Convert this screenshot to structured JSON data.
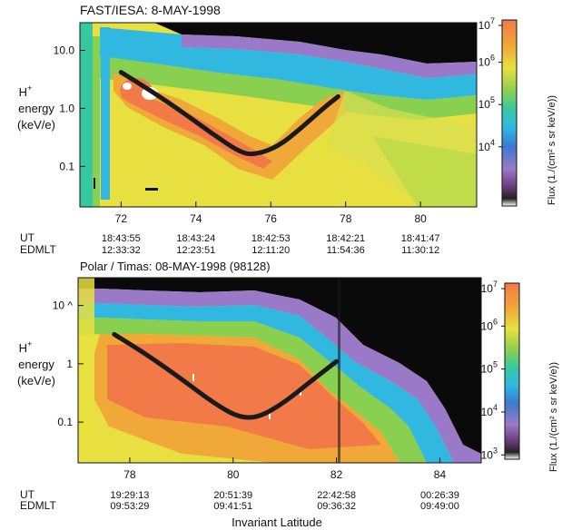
{
  "chart_data": [
    {
      "type": "heatmap",
      "title": "FAST/IESA:  8-MAY-1998",
      "ylabel_lines": [
        "H",
        "energy",
        "(keV/e)"
      ],
      "ylabel_superscript": "+",
      "y_scale": "log",
      "ylim": [
        0.02,
        30
      ],
      "yticks": [
        {
          "value": 10,
          "label": "10.0"
        },
        {
          "value": 1,
          "label": "1.0"
        },
        {
          "value": 0.1,
          "label": "0.1"
        }
      ],
      "xlim": [
        70.9,
        81.5
      ],
      "xticks": [
        72,
        74,
        76,
        78,
        80
      ],
      "ephemeris": {
        "UT": [
          "18:43:55",
          "18:43:24",
          "18:42:53",
          "18:42:21",
          "18:41:47"
        ],
        "EDMLT": [
          "12:33:32",
          "12:23:51",
          "12:11:20",
          "11:54:36",
          "11:30:12"
        ]
      },
      "ephemeris_labels": [
        "UT",
        "EDMLT"
      ],
      "colorbar": {
        "label": "Flux (1./(cm² s sr keV/e))",
        "ticks": [
          {
            "exp": "7",
            "value": 10000000
          },
          {
            "exp": "6",
            "value": 1000000
          },
          {
            "exp": "5",
            "value": 100000
          },
          {
            "exp": "4",
            "value": 10000
          }
        ],
        "base": "10"
      },
      "curve": {
        "x": [
          72.0,
          72.8,
          73.6,
          74.4,
          75.2,
          75.6,
          76.2,
          76.8,
          77.4,
          77.8
        ],
        "y": [
          4.2,
          2.0,
          0.9,
          0.38,
          0.17,
          0.16,
          0.22,
          0.45,
          1.0,
          1.6
        ]
      }
    },
    {
      "type": "heatmap",
      "title": "Polar / Timas:   08-MAY-1998    (98128)",
      "ylabel_lines": [
        "H",
        "energy",
        "(keV/e)"
      ],
      "ylabel_superscript": "+",
      "y_scale": "log",
      "ylim": [
        0.02,
        30
      ],
      "yticks": [
        {
          "value": 10,
          "label": "10 ^"
        },
        {
          "value": 1,
          "label": "1"
        },
        {
          "value": 0.1,
          "label": "0.1"
        }
      ],
      "xlim": [
        77.0,
        84.8
      ],
      "xticks": [
        78,
        80,
        82,
        84
      ],
      "xlabel": "Invariant Latitude",
      "ephemeris": {
        "UT": [
          "19:29:13",
          "20:51:39",
          "22:42:58",
          "00:26:39"
        ],
        "EDMLT": [
          "09:53:29",
          "09:41:51",
          "09:36:32",
          "09:49:00"
        ]
      },
      "ephemeris_labels": [
        "UT",
        "EDMLT"
      ],
      "colorbar": {
        "label": "Flux (1./(cm² s sr keV/e))",
        "ticks": [
          {
            "exp": "7",
            "value": 10000000
          },
          {
            "exp": "6",
            "value": 1000000
          },
          {
            "exp": "5",
            "value": 100000
          },
          {
            "exp": "4",
            "value": 10000
          },
          {
            "exp": "3",
            "value": 1000
          }
        ],
        "base": "10"
      },
      "curve": {
        "x": [
          77.7,
          78.3,
          79.0,
          79.6,
          80.1,
          80.5,
          81.0,
          81.5,
          82.0
        ],
        "y": [
          3.2,
          1.5,
          0.55,
          0.22,
          0.12,
          0.12,
          0.22,
          0.5,
          1.1
        ]
      }
    }
  ],
  "colors": {
    "colorscale": [
      "#ffffff",
      "#5a2a6a",
      "#9a7ac8",
      "#3a7ad0",
      "#30b8e0",
      "#38c8a0",
      "#8ad050",
      "#e8e040",
      "#f0a838",
      "#f27a48"
    ],
    "curve": "#1a1a1a",
    "background_top": "#0a0a0a"
  }
}
